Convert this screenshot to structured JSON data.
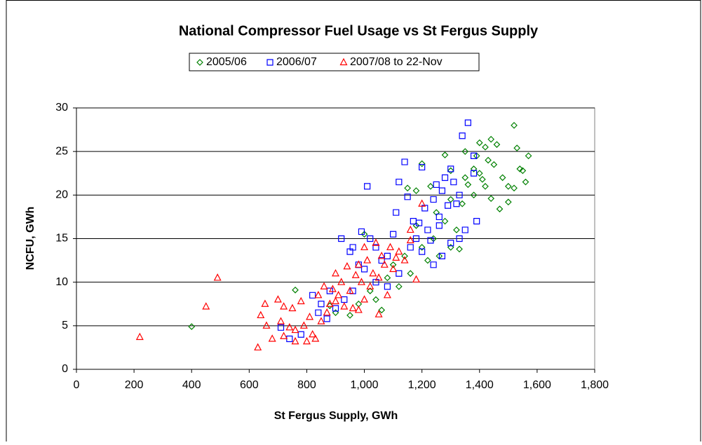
{
  "chart_data": {
    "type": "scatter",
    "title": "National Compressor Fuel Usage vs St Fergus Supply",
    "xlabel": "St Fergus Supply, GWh",
    "ylabel": "NCFU, GWh",
    "xlim": [
      0,
      1800
    ],
    "ylim": [
      0,
      30
    ],
    "xticks": [
      0,
      200,
      400,
      600,
      800,
      {
        "value": 1000,
        "label": "1,000"
      },
      {
        "value": 1200,
        "label": "1,200"
      },
      {
        "value": 1400,
        "label": "1,400"
      },
      {
        "value": 1600,
        "label": "1,600"
      },
      {
        "value": 1800,
        "label": "1,800"
      }
    ],
    "yticks": [
      0,
      5,
      10,
      15,
      20,
      25,
      30
    ],
    "grid": true,
    "legend": "top",
    "series": [
      {
        "name": "2005/06",
        "color": "#008000",
        "marker": "diamond",
        "x": [
          400,
          760,
          1060,
          1000,
          1150,
          1200,
          1280,
          1300,
          1350,
          1380,
          1400,
          1420,
          1440,
          1460,
          1480,
          1500,
          1520,
          1530,
          1540,
          1560,
          1570,
          1550,
          1520,
          1500,
          1470,
          1440,
          1420,
          1400,
          1380,
          1360,
          1340,
          1320,
          1300,
          1280,
          1260,
          1240,
          1220,
          1200,
          1180,
          1160,
          1140,
          1120,
          1100,
          1080,
          1040,
          1020,
          980,
          950,
          900,
          880,
          1450,
          1410,
          1430,
          1390,
          1350,
          1300,
          1330,
          1250,
          1230,
          1180
        ],
        "values": [
          4.9,
          9.1,
          6.8,
          15.5,
          20.8,
          23.6,
          24.6,
          22.8,
          25,
          23,
          26,
          25.5,
          26.4,
          25.8,
          22,
          21,
          28,
          25.4,
          23,
          21.5,
          24.5,
          22.8,
          20.8,
          19.2,
          18.4,
          19.6,
          21,
          22.5,
          20,
          21.2,
          19,
          16,
          14,
          17,
          13,
          15,
          12.5,
          14,
          16.5,
          11,
          13,
          9.5,
          12,
          10.5,
          8,
          9,
          7.5,
          6.2,
          6.5,
          7.3,
          23.5,
          21.8,
          24,
          24.5,
          22,
          19.5,
          13.8,
          18,
          21,
          20.5
        ]
      },
      {
        "name": "2006/07",
        "color": "#0000ff",
        "marker": "square",
        "x": [
          710,
          740,
          780,
          820,
          850,
          880,
          920,
          950,
          960,
          980,
          990,
          1010,
          1020,
          1040,
          1060,
          1080,
          1100,
          1110,
          1120,
          1140,
          1150,
          1170,
          1180,
          1200,
          1210,
          1220,
          1240,
          1250,
          1260,
          1270,
          1280,
          1290,
          1300,
          1310,
          1320,
          1330,
          1340,
          1360,
          1380,
          1350,
          1330,
          1300,
          1270,
          1240,
          1200,
          1160,
          1120,
          1080,
          1040,
          1000,
          960,
          930,
          900,
          870,
          840,
          1380,
          1390,
          1230,
          1190,
          1260
        ],
        "values": [
          4.8,
          3.5,
          4,
          8.5,
          7.5,
          9,
          15,
          13.5,
          14,
          12,
          15.8,
          21,
          15,
          14,
          12.5,
          13,
          15.5,
          18,
          21.5,
          23.8,
          19.8,
          17,
          15,
          23.2,
          18.5,
          16,
          19.5,
          21.2,
          17.5,
          20.5,
          22,
          18.8,
          23,
          21.5,
          19,
          20,
          26.8,
          28.3,
          24.5,
          16,
          15,
          14.5,
          13,
          12,
          13.5,
          14,
          11,
          9.5,
          10,
          11.5,
          9,
          8,
          7,
          5.8,
          6.5,
          22.5,
          17,
          14.8,
          16.8,
          16.5
        ]
      },
      {
        "name": "2007/08 to 22-Nov",
        "color": "#ff0000",
        "marker": "triangle",
        "x": [
          220,
          450,
          490,
          630,
          640,
          655,
          660,
          700,
          710,
          720,
          740,
          750,
          760,
          780,
          790,
          800,
          810,
          820,
          840,
          860,
          870,
          880,
          900,
          910,
          920,
          940,
          950,
          960,
          980,
          990,
          1000,
          1010,
          1030,
          1040,
          1050,
          1060,
          1070,
          1090,
          1100,
          1120,
          1140,
          1160,
          1180,
          1200,
          1160,
          1050,
          980,
          900,
          850,
          760,
          720,
          680,
          830,
          1020,
          1080,
          970,
          930,
          1110,
          1000,
          890
        ],
        "values": [
          3.7,
          7.2,
          10.5,
          2.5,
          6.2,
          7.5,
          5,
          8,
          5.5,
          3.8,
          4.8,
          7,
          3.2,
          7.8,
          5,
          3.2,
          6,
          4,
          8.5,
          9.5,
          6.5,
          7.5,
          11,
          8.5,
          10,
          11.8,
          9,
          7,
          12,
          10,
          8,
          12.5,
          11,
          14.5,
          10.5,
          13,
          12,
          14,
          11.5,
          13.5,
          12.5,
          14.8,
          10.3,
          19,
          16,
          6.3,
          6.8,
          7.8,
          5.5,
          4.5,
          7.2,
          3.5,
          3.5,
          9.5,
          8.5,
          10.8,
          7.2,
          12.8,
          14,
          9.2
        ]
      }
    ]
  }
}
